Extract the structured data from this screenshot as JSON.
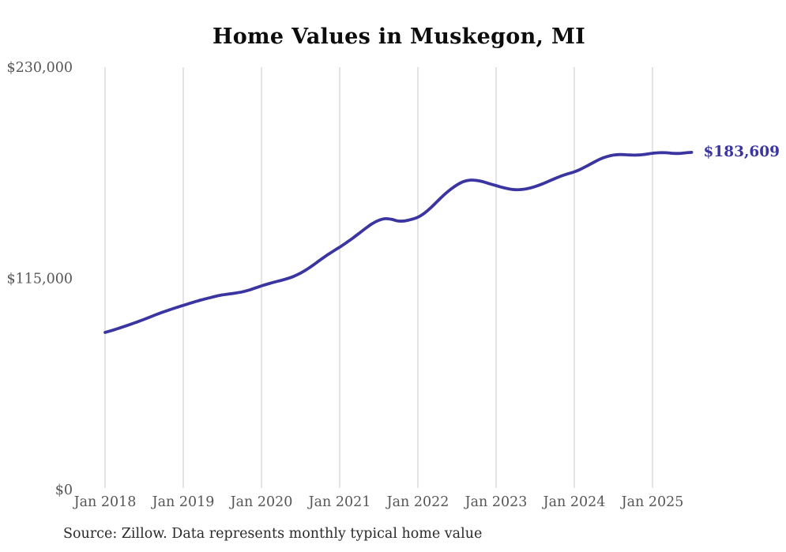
{
  "title": "Home Values in Muskegon, MI",
  "source_note": "Source: Zillow. Data represents monthly typical home value",
  "end_label": "$183,609",
  "colors": {
    "line": "#3a35a0",
    "end_label": "#3a35a0",
    "grid": "#c9c9c9",
    "axis_text": "#565656",
    "title_text": "#0d0d0d",
    "source_text": "#2a2a2a",
    "background": "#ffffff"
  },
  "chart_data": {
    "type": "line",
    "title": "Home Values in Muskegon, MI",
    "xlabel": "",
    "ylabel": "",
    "x_tick_labels": [
      "Jan 2018",
      "Jan 2019",
      "Jan 2020",
      "Jan 2021",
      "Jan 2022",
      "Jan 2023",
      "Jan 2024",
      "Jan 2025"
    ],
    "y_ticks": [
      0,
      115000,
      230000
    ],
    "y_tick_labels": [
      "$0",
      "$115,000",
      "$230,000"
    ],
    "ylim": [
      0,
      230000
    ],
    "grid": "vertical-only",
    "legend_position": "none",
    "end_value": 183609,
    "series": [
      {
        "name": "Monthly typical home value",
        "start_month": "2018-01",
        "end_month": "2025-07",
        "values": [
          85600,
          86600,
          87700,
          88900,
          90100,
          91400,
          92700,
          94100,
          95500,
          96800,
          98000,
          99200,
          100300,
          101400,
          102500,
          103500,
          104400,
          105300,
          106000,
          106500,
          107000,
          107600,
          108500,
          109700,
          110900,
          112000,
          113000,
          113900,
          114900,
          116200,
          117900,
          120000,
          122400,
          125000,
          127500,
          129800,
          132000,
          134400,
          136900,
          139600,
          142300,
          144800,
          146600,
          147500,
          147100,
          146200,
          146300,
          147100,
          148300,
          150500,
          153500,
          157000,
          160400,
          163400,
          165900,
          167700,
          168500,
          168300,
          167600,
          166500,
          165500,
          164500,
          163700,
          163300,
          163400,
          164000,
          165000,
          166300,
          167800,
          169300,
          170700,
          171900,
          173000,
          174500,
          176300,
          178200,
          180000,
          181300,
          182100,
          182400,
          182300,
          182100,
          182200,
          182600,
          183100,
          183400,
          183400,
          183100,
          183000,
          183300,
          183609
        ]
      }
    ]
  }
}
